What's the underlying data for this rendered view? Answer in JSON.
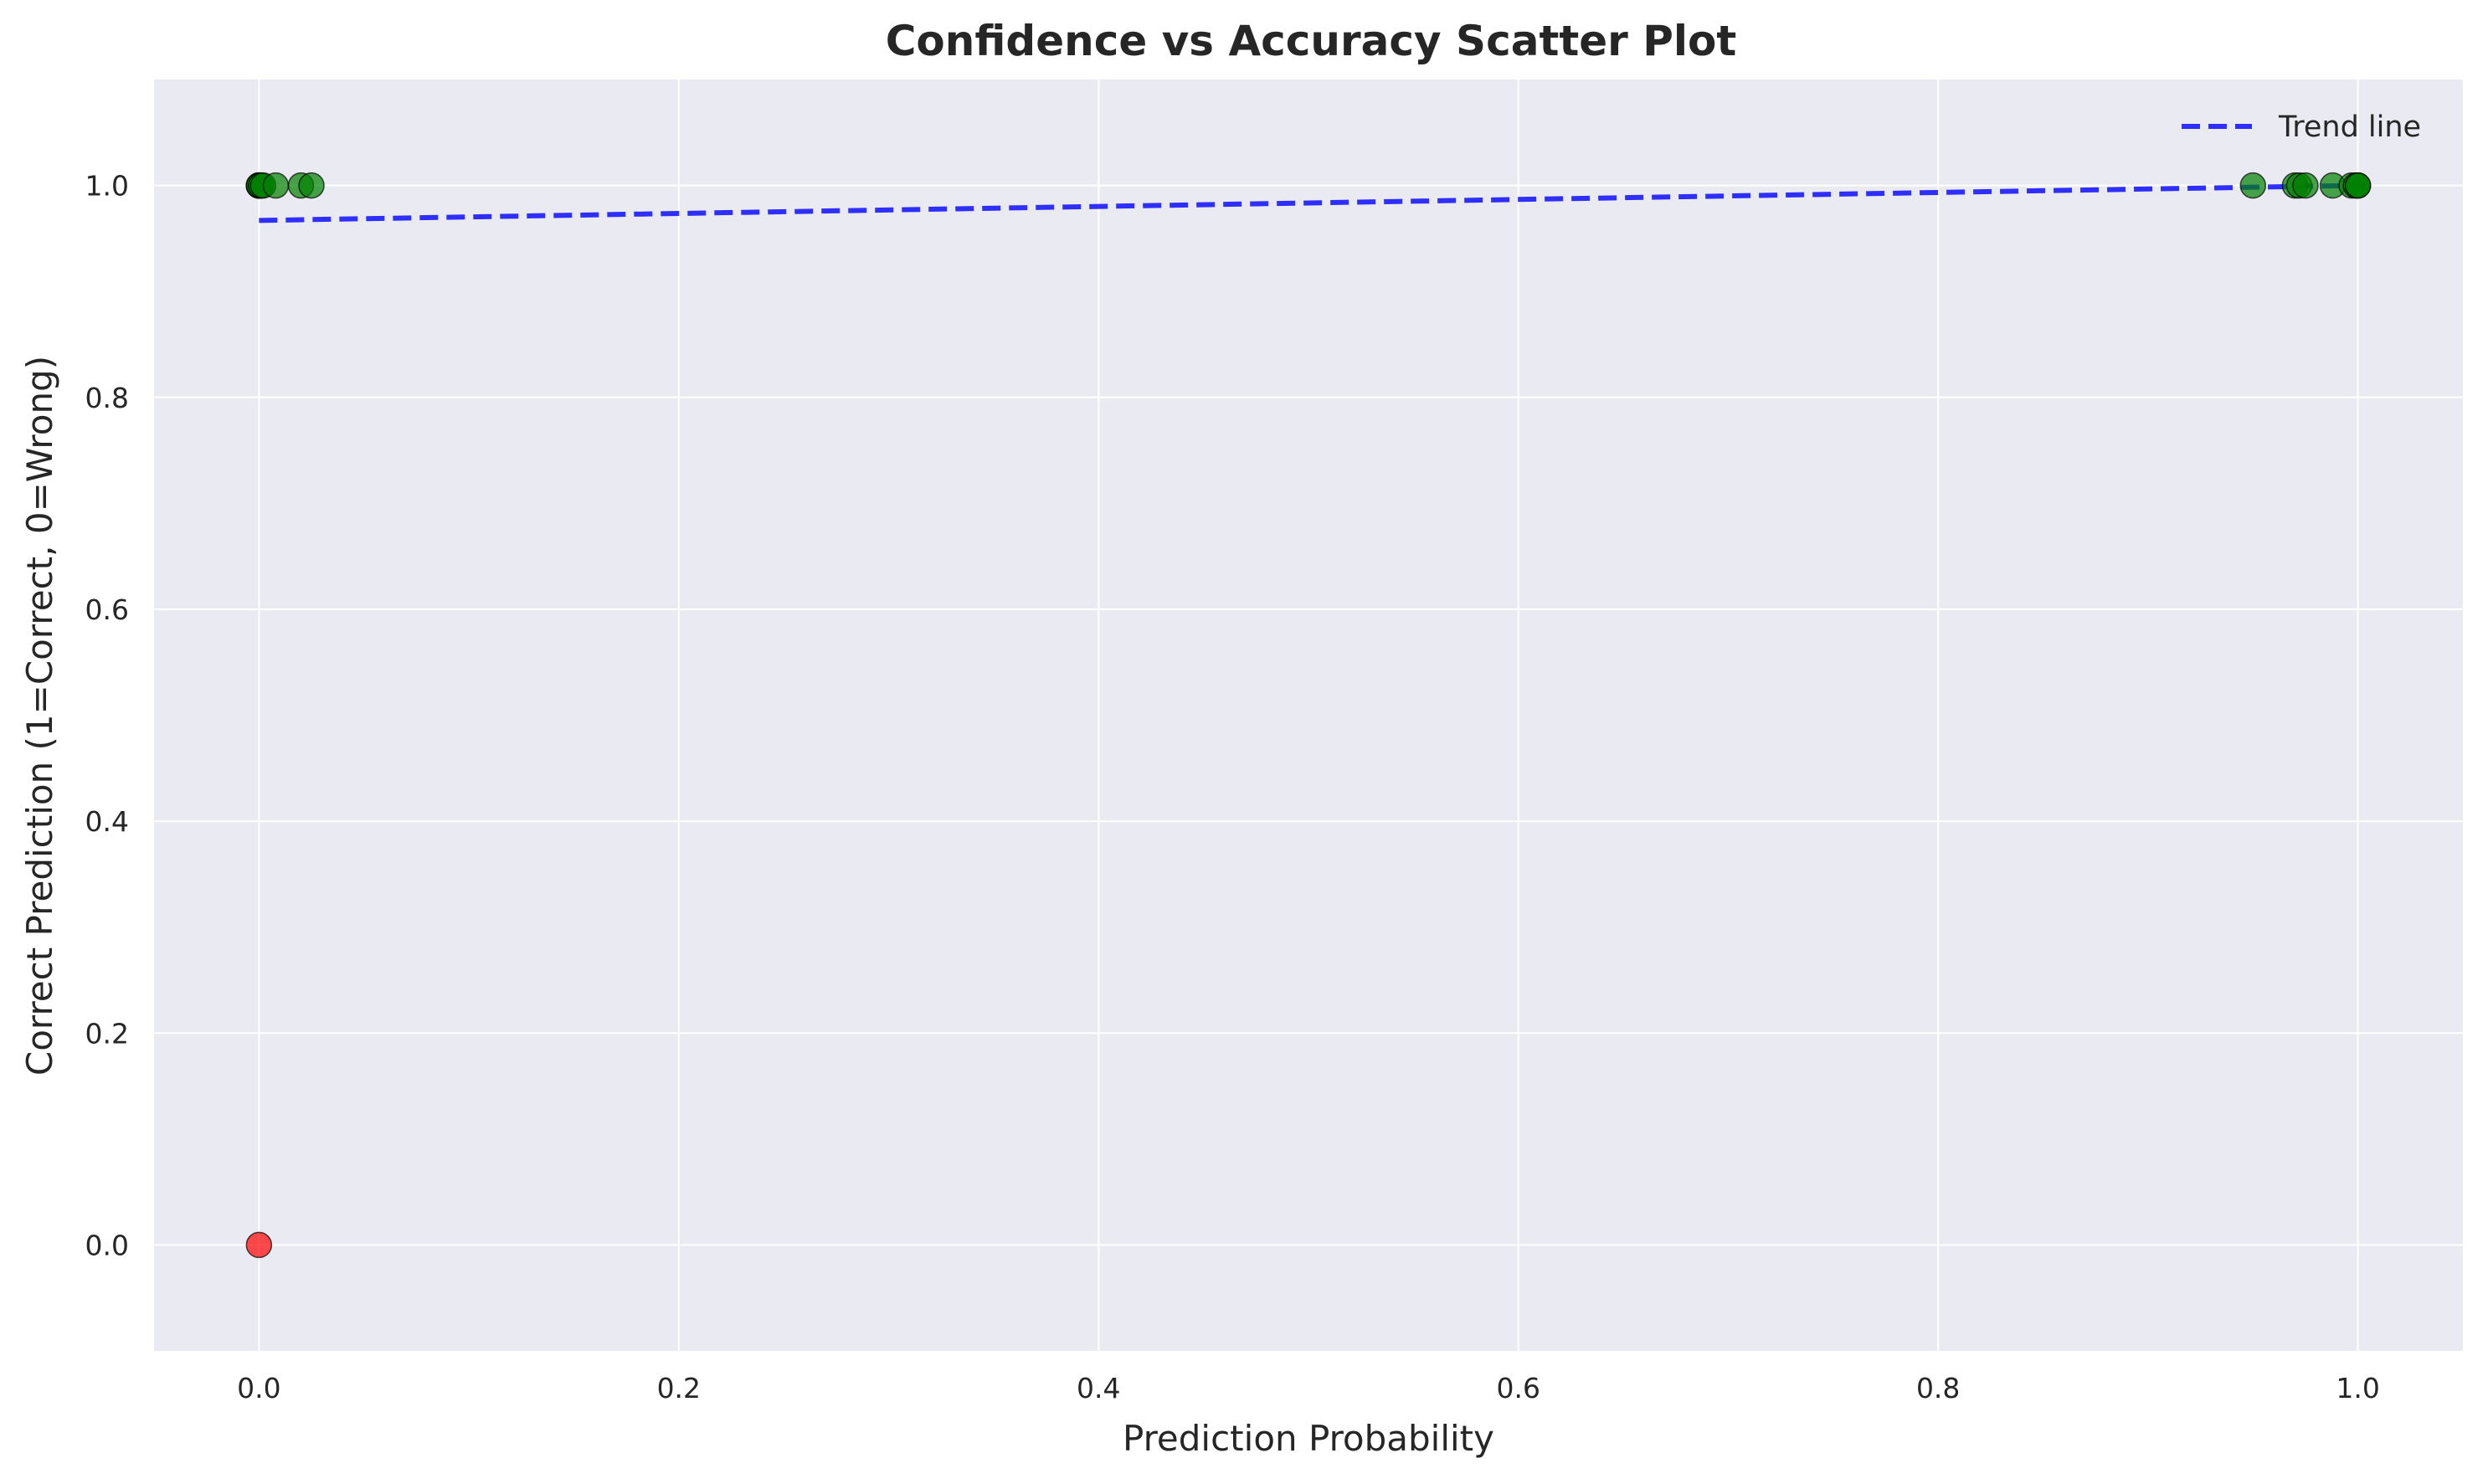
{
  "chart_data": {
    "type": "scatter",
    "title": "Confidence vs Accuracy Scatter Plot",
    "xlabel": "Prediction Probability",
    "ylabel": "Correct Prediction (1=Correct, 0=Wrong)",
    "xlim": [
      -0.05,
      1.05
    ],
    "ylim": [
      -0.1,
      1.1
    ],
    "x_ticks": [
      0.0,
      0.2,
      0.4,
      0.6,
      0.8,
      1.0
    ],
    "x_tick_labels": [
      "0.0",
      "0.2",
      "0.4",
      "0.6",
      "0.8",
      "1.0"
    ],
    "y_ticks": [
      0.0,
      0.2,
      0.4,
      0.6,
      0.8,
      1.0
    ],
    "y_tick_labels": [
      "0.0",
      "0.2",
      "0.4",
      "0.6",
      "0.8",
      "1.0"
    ],
    "grid": true,
    "legend_position": "top-right",
    "colors": {
      "background": "#eaeaf2",
      "grid": "#ffffff",
      "correct": "#008000",
      "wrong": "#ff0000",
      "trend": "#0000ff"
    },
    "points": [
      {
        "x": 0.0,
        "y": 1,
        "correct": true
      },
      {
        "x": 0.0,
        "y": 1,
        "correct": true
      },
      {
        "x": 0.0,
        "y": 1,
        "correct": true
      },
      {
        "x": 0.0,
        "y": 1,
        "correct": true
      },
      {
        "x": 0.0,
        "y": 1,
        "correct": true
      },
      {
        "x": 0.001,
        "y": 1,
        "correct": true
      },
      {
        "x": 0.002,
        "y": 1,
        "correct": true
      },
      {
        "x": 0.008,
        "y": 1,
        "correct": true
      },
      {
        "x": 0.02,
        "y": 1,
        "correct": true
      },
      {
        "x": 0.025,
        "y": 1,
        "correct": true
      },
      {
        "x": 0.95,
        "y": 1,
        "correct": true
      },
      {
        "x": 0.97,
        "y": 1,
        "correct": true
      },
      {
        "x": 0.972,
        "y": 1,
        "correct": true
      },
      {
        "x": 0.975,
        "y": 1,
        "correct": true
      },
      {
        "x": 0.988,
        "y": 1,
        "correct": true
      },
      {
        "x": 0.997,
        "y": 1,
        "correct": true
      },
      {
        "x": 0.999,
        "y": 1,
        "correct": true
      },
      {
        "x": 1.0,
        "y": 1,
        "correct": true
      },
      {
        "x": 1.0,
        "y": 1,
        "correct": true
      },
      {
        "x": 0.0,
        "y": 0,
        "correct": false
      }
    ],
    "trend_line": {
      "name": "Trend line",
      "x": [
        0.0,
        1.0
      ],
      "y": [
        0.967,
        1.0
      ]
    }
  }
}
